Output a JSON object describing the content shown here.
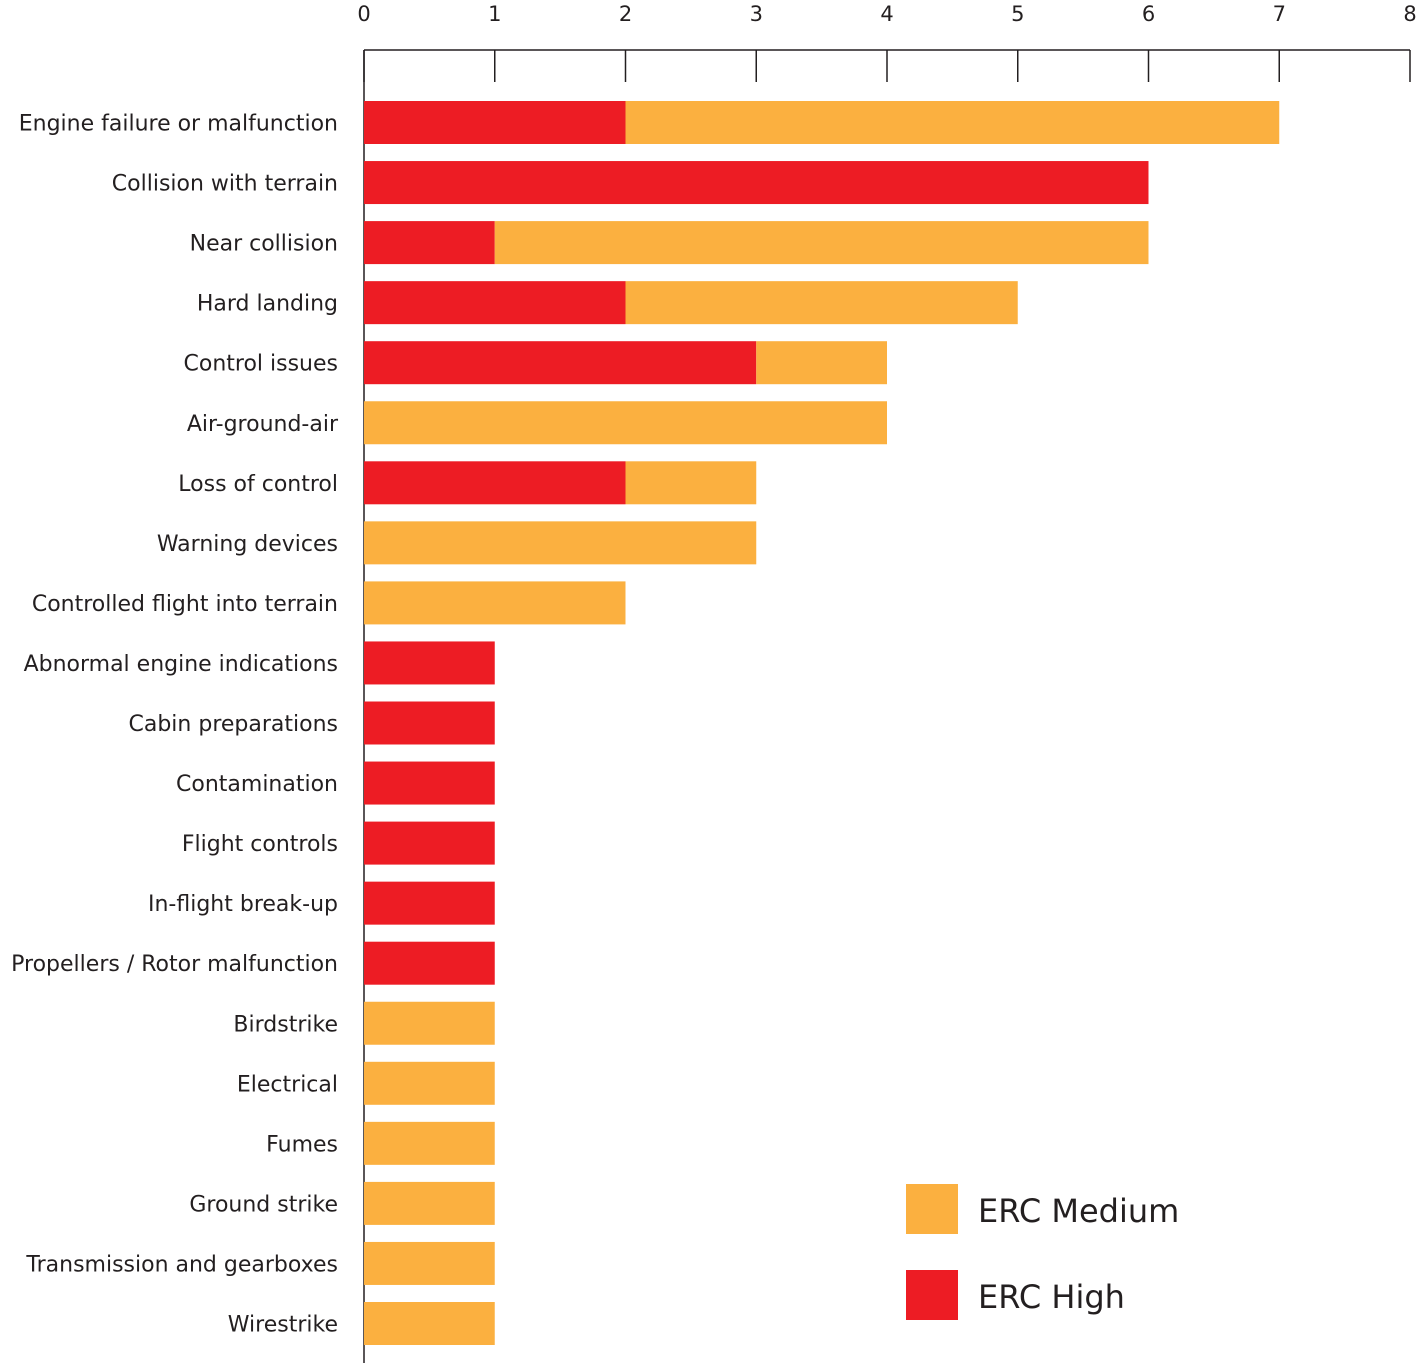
{
  "chart_data": {
    "type": "bar",
    "orientation": "horizontal",
    "stacked": true,
    "x_ticks": [
      "0",
      "1",
      "2",
      "3",
      "4",
      "5",
      "6",
      "7",
      "8"
    ],
    "xlim": [
      0,
      8
    ],
    "x_axis_position": "top",
    "grid": false,
    "legend_position": "bottom-right",
    "categories": [
      "Engine failure or malfunction",
      "Collision with terrain",
      "Near collision",
      "Hard landing",
      "Control issues",
      "Air-ground-air",
      "Loss of control",
      "Warning devices",
      "Controlled flight into terrain",
      "Abnormal engine indications",
      "Cabin preparations",
      "Contamination",
      "Flight controls",
      "In-flight break-up",
      "Propellers / Rotor malfunction",
      "Birdstrike",
      "Electrical",
      "Fumes",
      "Ground strike",
      "Transmission and gearboxes",
      "Wirestrike"
    ],
    "series": [
      {
        "name": "ERC High",
        "color": "#ed1c24",
        "values": [
          2,
          6,
          1,
          2,
          3,
          0,
          2,
          0,
          0,
          1,
          1,
          1,
          1,
          1,
          1,
          0,
          0,
          0,
          0,
          0,
          0
        ]
      },
      {
        "name": "ERC Medium",
        "color": "#fbb040",
        "values": [
          5,
          0,
          5,
          3,
          1,
          4,
          1,
          3,
          2,
          0,
          0,
          0,
          0,
          0,
          0,
          1,
          1,
          1,
          1,
          1,
          1
        ]
      }
    ],
    "legend": [
      {
        "label": "ERC Medium",
        "color": "#fbb040"
      },
      {
        "label": "ERC High",
        "color": "#ed1c24"
      }
    ]
  }
}
